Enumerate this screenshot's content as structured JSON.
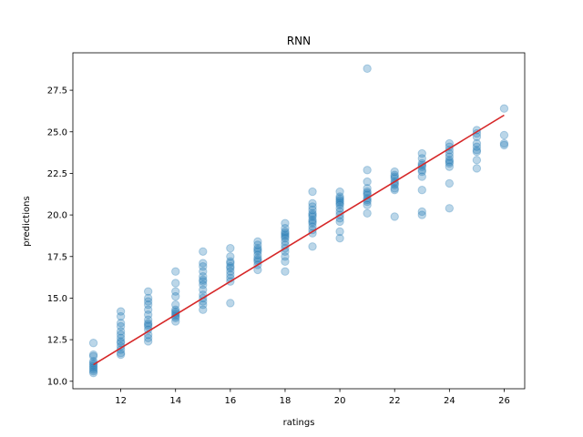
{
  "chart_data": {
    "type": "scatter",
    "title": "RNN",
    "xlabel": "ratings",
    "ylabel": "predictions",
    "xlim": [
      10.25,
      26.75
    ],
    "ylim": [
      9.55,
      29.75
    ],
    "xticks": [
      12,
      14,
      16,
      18,
      20,
      22,
      24,
      26
    ],
    "yticks": [
      10.0,
      12.5,
      15.0,
      17.5,
      20.0,
      22.5,
      25.0,
      27.5
    ],
    "ytick_labels": [
      "10.0",
      "12.5",
      "15.0",
      "17.5",
      "20.0",
      "22.5",
      "25.0",
      "27.5"
    ],
    "grid": false,
    "legend": "none",
    "colors": {
      "points": "#1f77b4",
      "fit_line": "#d62728"
    },
    "point_alpha": 0.3,
    "fit_line": {
      "x": [
        11,
        26
      ],
      "y": [
        11.0,
        26.0
      ]
    },
    "series": [
      {
        "x": [
          11,
          11,
          11,
          11,
          11,
          11,
          11,
          11,
          11,
          11,
          11,
          12,
          12,
          12,
          12,
          12,
          12,
          12,
          12,
          12,
          12,
          12,
          12,
          12,
          13,
          13,
          13,
          13,
          13,
          13,
          13,
          13,
          13,
          13,
          13,
          13,
          13,
          13,
          14,
          14,
          14,
          14,
          14,
          14,
          14,
          14,
          14,
          14,
          14,
          14,
          15,
          15,
          15,
          15,
          15,
          15,
          15,
          15,
          15,
          15,
          15,
          15,
          15,
          15,
          16,
          16,
          16,
          16,
          16,
          16,
          16,
          16,
          16,
          16,
          16,
          17,
          17,
          17,
          17,
          17,
          17,
          17,
          17,
          17,
          17,
          17,
          18,
          18,
          18,
          18,
          18,
          18,
          18,
          18,
          18,
          18,
          18,
          18,
          18,
          18,
          19,
          19,
          19,
          19,
          19,
          19,
          19,
          19,
          19,
          19,
          19,
          19,
          19,
          19,
          20,
          20,
          20,
          20,
          20,
          20,
          20,
          20,
          20,
          20,
          20,
          20,
          20,
          20,
          21,
          21,
          21,
          21,
          21,
          21,
          21,
          21,
          21,
          21,
          21,
          21,
          22,
          22,
          22,
          22,
          22,
          22,
          22,
          22,
          22,
          22,
          23,
          23,
          23,
          23,
          23,
          23,
          23,
          23,
          23,
          23,
          23,
          24,
          24,
          24,
          24,
          24,
          24,
          24,
          24,
          24,
          24,
          24,
          25,
          25,
          25,
          25,
          25,
          25,
          25,
          25,
          25,
          26,
          26,
          26,
          26
        ],
        "y": [
          12.3,
          11.6,
          11.5,
          11.1,
          10.9,
          10.8,
          10.7,
          10.6,
          10.5,
          11.0,
          11.2,
          14.2,
          13.9,
          13.5,
          13.3,
          13.0,
          12.6,
          12.4,
          12.1,
          11.9,
          11.7,
          11.6,
          12.3,
          12.8,
          15.4,
          15.0,
          14.8,
          14.6,
          14.3,
          14.0,
          13.7,
          13.5,
          13.3,
          13.1,
          12.8,
          12.6,
          12.4,
          13.4,
          16.6,
          15.9,
          15.4,
          15.1,
          14.6,
          14.3,
          14.1,
          14.0,
          13.8,
          13.6,
          13.9,
          14.2,
          17.8,
          17.1,
          16.9,
          16.6,
          16.3,
          16.1,
          15.8,
          15.5,
          15.2,
          15.0,
          14.8,
          14.6,
          14.3,
          16.0,
          18.0,
          17.5,
          17.2,
          16.9,
          16.6,
          16.4,
          16.2,
          16.0,
          14.7,
          16.8,
          17.1,
          18.4,
          18.2,
          18.0,
          17.8,
          17.6,
          17.4,
          17.2,
          17.0,
          16.7,
          17.9,
          17.3,
          19.5,
          19.2,
          19.0,
          18.8,
          18.6,
          18.4,
          18.2,
          18.0,
          17.8,
          17.5,
          17.2,
          16.6,
          18.9,
          18.7,
          21.4,
          20.7,
          20.5,
          20.3,
          20.1,
          19.9,
          19.7,
          19.5,
          19.3,
          19.1,
          18.9,
          18.1,
          20.0,
          19.6,
          21.4,
          21.1,
          20.9,
          20.7,
          20.6,
          20.4,
          20.2,
          20.0,
          19.8,
          19.6,
          19.0,
          18.6,
          21.0,
          20.8,
          28.8,
          22.7,
          22.0,
          21.6,
          21.4,
          21.2,
          21.0,
          20.8,
          20.6,
          20.1,
          21.3,
          20.9,
          22.6,
          22.4,
          22.2,
          22.0,
          21.8,
          21.6,
          21.5,
          22.3,
          21.9,
          19.9,
          23.7,
          23.4,
          23.1,
          22.9,
          22.7,
          22.6,
          22.3,
          21.5,
          20.2,
          20.0,
          23.0,
          24.3,
          24.1,
          23.9,
          23.7,
          23.5,
          23.3,
          23.1,
          22.9,
          21.9,
          20.4,
          23.2,
          24.9,
          24.7,
          24.3,
          24.1,
          23.9,
          23.8,
          23.3,
          22.8,
          25.1,
          26.4,
          24.8,
          24.3,
          24.2
        ]
      }
    ]
  }
}
